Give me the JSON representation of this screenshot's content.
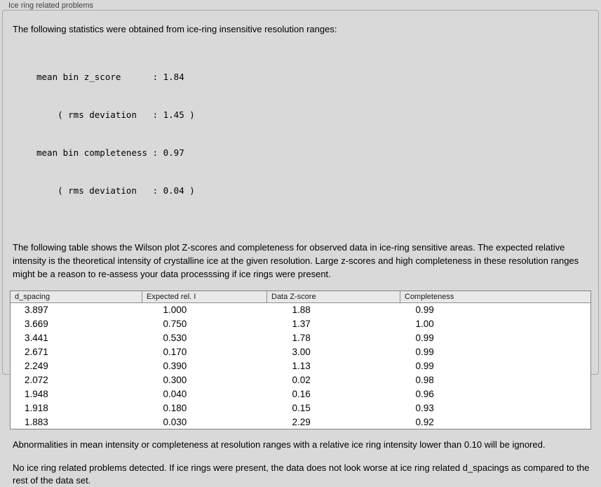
{
  "panel": {
    "title": "Ice ring related problems",
    "intro": "The following statistics were obtained from ice-ring insensitive resolution ranges:",
    "stats": [
      "mean bin z_score      : 1.84",
      "    ( rms deviation   : 1.45 )",
      "mean bin completeness : 0.97",
      "    ( rms deviation   : 0.04 )"
    ],
    "table_description": "The following table shows the Wilson plot Z-scores and completeness for observed data in ice-ring sensitive areas. The expected relative intensity is the theoretical intensity of crystalline ice at the given resolution. Large z-scores and high completeness in these resolution ranges might be a reason to re-assess your data processsing if ice rings were present.",
    "table": {
      "headers": [
        "d_spacing",
        "Expected rel. I",
        "Data Z-score",
        "Completeness"
      ],
      "rows": [
        [
          "3.897",
          "1.000",
          "1.88",
          "0.99"
        ],
        [
          "3.669",
          "0.750",
          "1.37",
          "1.00"
        ],
        [
          "3.441",
          "0.530",
          "1.78",
          "0.99"
        ],
        [
          "2.671",
          "0.170",
          "3.00",
          "0.99"
        ],
        [
          "2.249",
          "0.390",
          "1.13",
          "0.99"
        ],
        [
          "2.072",
          "0.300",
          "0.02",
          "0.98"
        ],
        [
          "1.948",
          "0.040",
          "0.16",
          "0.96"
        ],
        [
          "1.918",
          "0.180",
          "0.15",
          "0.93"
        ],
        [
          "1.883",
          "0.030",
          "2.29",
          "0.92"
        ]
      ]
    },
    "note_ignore": "Abnormalities in mean intensity or completeness at resolution ranges with a relative ice ring intensity lower than 0.10 will be ignored.",
    "note_result": "No ice ring related problems detected. If ice rings were present, the data does not look worse at ice ring related d_spacings as compared to the rest of the data set."
  }
}
